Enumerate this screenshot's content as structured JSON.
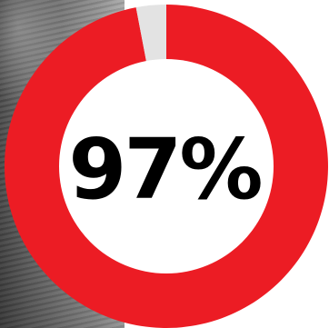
{
  "chart_data": {
    "type": "pie",
    "style": "donut",
    "values": [
      97,
      3
    ],
    "center_label": "97%",
    "colors": [
      "#ec1c24",
      "#e3e3e3"
    ]
  }
}
